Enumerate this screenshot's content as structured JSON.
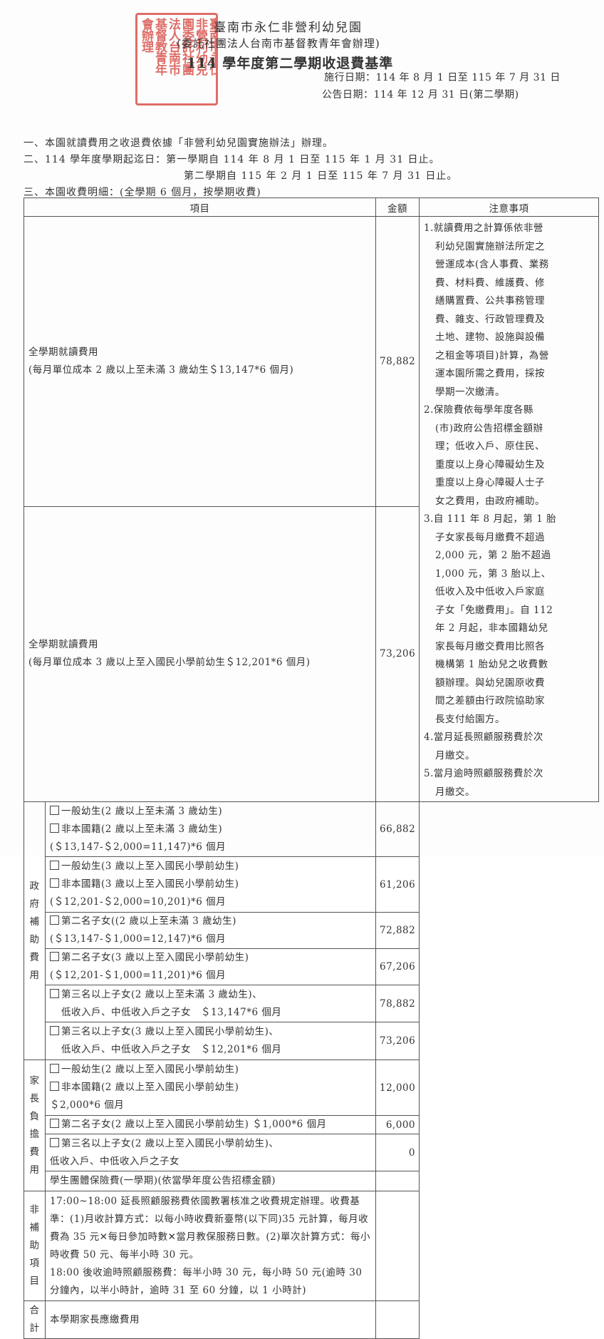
{
  "header": {
    "title": "臺南市永仁非營利幼兒園",
    "subtitle": "(委託社團法人台南市基督教青年會辦理)",
    "heading": "114 學年度第二學期收退費基準",
    "effective_date": "施行日期：114 年 8 月 1 日至 115 年 7 月 31 日",
    "announce_date": "公告日期：114 年 12 月 31 日(第二學期)",
    "seal_text": [
      "臺南市永仁",
      "非營利幼兒",
      "園委託社團",
      "法人台南市",
      "基督教青年",
      "會辦理"
    ],
    "seal_color": "#d9554f"
  },
  "intro": {
    "line1": "一、本園就讀費用之收退費依據「非營利幼兒園實施辦法」辦理。",
    "line2": "二、114 學年度學期起迄日：第一學期自 114 年 8 月 1 日至 115 年 1 月 31 日止。",
    "line2b": "第二學期自 115 年 2 月 1 日至 115 年 7 月 31 日止。",
    "line3": "三、本園收費明細：(全學期 6 個月，按學期收費)"
  },
  "table": {
    "col_item": "項目",
    "col_amount": "金額",
    "col_notes": "注意事項",
    "cat_gov": "政\n府\n補\n助\n費\n用",
    "cat_parent": "家\n長\n負\n擔\n費\n用",
    "cat_non": "非\n補\n助\n項\n目",
    "cat_total": "合\n計",
    "full1": {
      "text": "全學期就讀費用\n(每月單位成本 2 歲以上至未滿 3 歲幼生＄13,147*6 個月)",
      "amount": "78,882"
    },
    "full2": {
      "text": "全學期就讀費用\n(每月單位成本 3 歲以上至入國民小學前幼生＄12,201*6 個月)",
      "amount": "73,206"
    },
    "gov": [
      {
        "l1": "一般幼生(2 歲以上至未滿 3 歲幼生)",
        "l2": "非本國籍(2 歲以上至未滿 3 歲幼生)",
        "l3": "(＄13,147-＄2,000=11,147)*6 個月",
        "amount": "66,882"
      },
      {
        "l1": "一般幼生(3 歲以上至入國民小學前幼生)",
        "l2": "非本國籍(3 歲以上至入國民小學前幼生)",
        "l3": "(＄12,201-＄2,000=10,201)*6 個月",
        "amount": "61,206"
      },
      {
        "l1": "第二名子女((2 歲以上至未滿 3 歲幼生)",
        "l3": "(＄13,147-＄1,000=12,147)*6 個月",
        "amount": "72,882"
      },
      {
        "l1": "第二名子女(3 歲以上至入國民小學前幼生)",
        "l3": "(＄12,201-＄1,000=11,201)*6 個月",
        "amount": "67,206"
      },
      {
        "l1": "第三名以上子女(2 歲以上至未滿 3 歲幼生)、",
        "l3": "低收入戶、中低收入戶之子女　＄13,147*6 個月",
        "amount": "78,882"
      },
      {
        "l1": "第三名以上子女(3 歲以上至入國民小學前幼生)、",
        "l3": "低收入戶、中低收入戶之子女　＄12,201*6 個月",
        "amount": "73,206"
      }
    ],
    "parent": [
      {
        "l1": "一般幼生(2 歲以上至入國民小學前幼生)",
        "l2": "非本國籍(2 歲以上至入國民小學前幼生)",
        "l3": "＄2,000*6 個月",
        "amount": "12,000"
      },
      {
        "l1": "第二名子女(2 歲以上至入國民小學前幼生) ＄1,000*6 個月",
        "amount": "6,000"
      },
      {
        "l1": "第三名以上子女(2 歲以上至入國民小學前幼生)、",
        "l3": "低收入戶、中低收入戶之子女",
        "amount": "0"
      },
      {
        "l3": "學生團體保險費(一學期)(依當學年度公告招標金額)",
        "amount": ""
      }
    ],
    "non_subsidy": "17:00~18:00 延長照顧服務費依國教署核准之收費規定辦理。收費基準：(1)月收計算方式：以每小時收費新臺幣(以下同)35 元計算，每月收費為 35 元✕每日參加時數✕當月教保服務日數。(2)單次計算方式：每小時收費 50 元、每半小時 30 元。\n18:00 後收逾時照顧服務費：每半小時 30 元，每小時 50 元(逾時 30 分鐘內，以半小時計，逾時 31 至 60 分鐘，以 1 小時計)",
    "total": "本學期家長應繳費用",
    "notes": [
      "1.就讀費用之計算係依非營\n利幼兒園實施辦法所定之\n營運成本(含人事費、業務\n費、材料費、維護費、修\n繕購置費、公共事務管理\n費、雜支、行政管理費及\n土地、建物、設施與設備\n之租金等項目)計算，為營\n運本園所需之費用，採按\n學期一次繳清。",
      "2.保險費依每學年度各縣\n(市)政府公告招標金額辦\n理；低收入戶、原住民、\n重度以上身心障礙幼生及\n重度以上身心障礙人士子\n女之費用，由政府補助。",
      "3.自 111 年 8 月起，第 1 胎\n子女家長每月繳費不超過\n2,000 元，第 2 胎不超過\n1,000 元，第 3 胎以上、\n低收入及中低收入戶家庭\n子女「免繳費用」。自 112\n年 2 月起，非本國籍幼兒\n家長每月繳交費用比照各\n機構第 1 胎幼兒之收費數\n額辦理。與幼兒園原收費\n間之差額由行政院協助家\n長支付給園方。",
      "4.當月延長照顧服務費於次\n月繳交。",
      "5.當月逾時照顧服務費於次\n月繳交。"
    ]
  }
}
